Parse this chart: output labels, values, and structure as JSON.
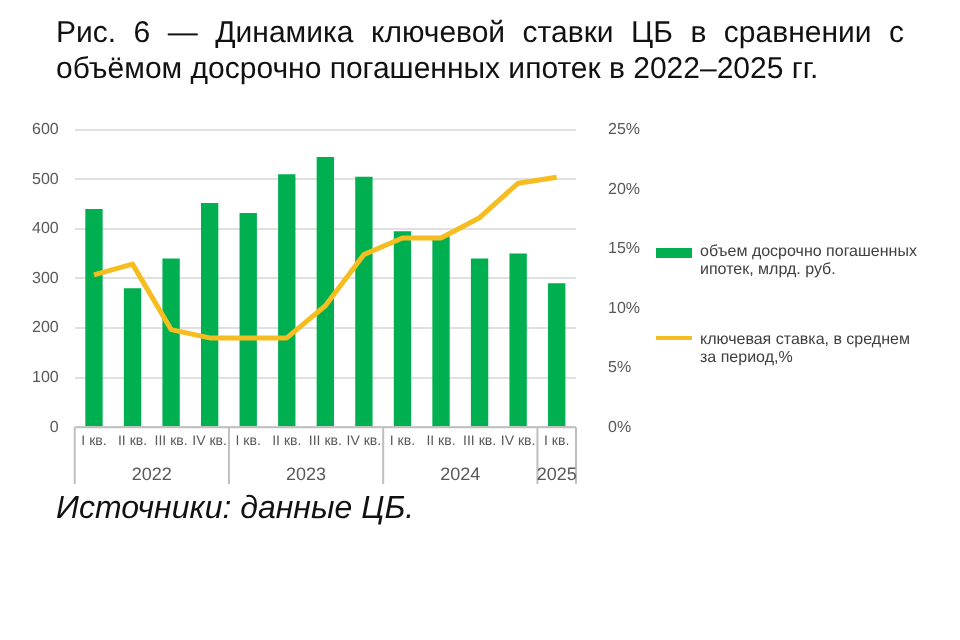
{
  "chart_data": {
    "type": "bar",
    "title": "Рис. 6 — Динамика ключевой ставки ЦБ в сравнении с объёмом досрочно погашенных ипотек в 2022–2025 гг.",
    "categories": [
      "I кв.",
      "II кв.",
      "III кв.",
      "IV кв.",
      "I кв.",
      "II кв.",
      "III кв.",
      "IV кв.",
      "I кв.",
      "II кв.",
      "III кв.",
      "IV кв.",
      "I кв."
    ],
    "series": [
      {
        "name": "объем досрочно погашенных ипотек, млрд. руб.",
        "color": "#00b050",
        "values": [
          440,
          280,
          340,
          452,
          432,
          510,
          545,
          505,
          395,
          385,
          340,
          350,
          290
        ]
      },
      {
        "name": "ключевая ставка, в среднем за период,%",
        "type": "line",
        "axis": "y2",
        "color": "#f5bd1f",
        "values": [
          12.8,
          13.7,
          8.2,
          7.5,
          7.5,
          7.5,
          10.2,
          14.5,
          15.9,
          15.9,
          17.6,
          20.5,
          21.0
        ]
      }
    ],
    "ylim": [
      0,
      600
    ],
    "yticks": [
      0,
      100,
      200,
      300,
      400,
      500,
      600
    ],
    "y2lim": [
      0,
      25
    ],
    "y2ticks": [
      {
        "value": 0,
        "label": "0%"
      },
      {
        "value": 5,
        "label": "5%"
      },
      {
        "value": 10,
        "label": "10%"
      },
      {
        "value": 15,
        "label": "15%"
      },
      {
        "value": 20,
        "label": "20%"
      },
      {
        "value": 25,
        "label": "25%"
      }
    ],
    "grid": "y",
    "legend": "right",
    "marker": "none",
    "annotations": [
      "2022",
      "2023",
      "2024",
      "2025",
      "Источники: данные ЦБ."
    ]
  }
}
